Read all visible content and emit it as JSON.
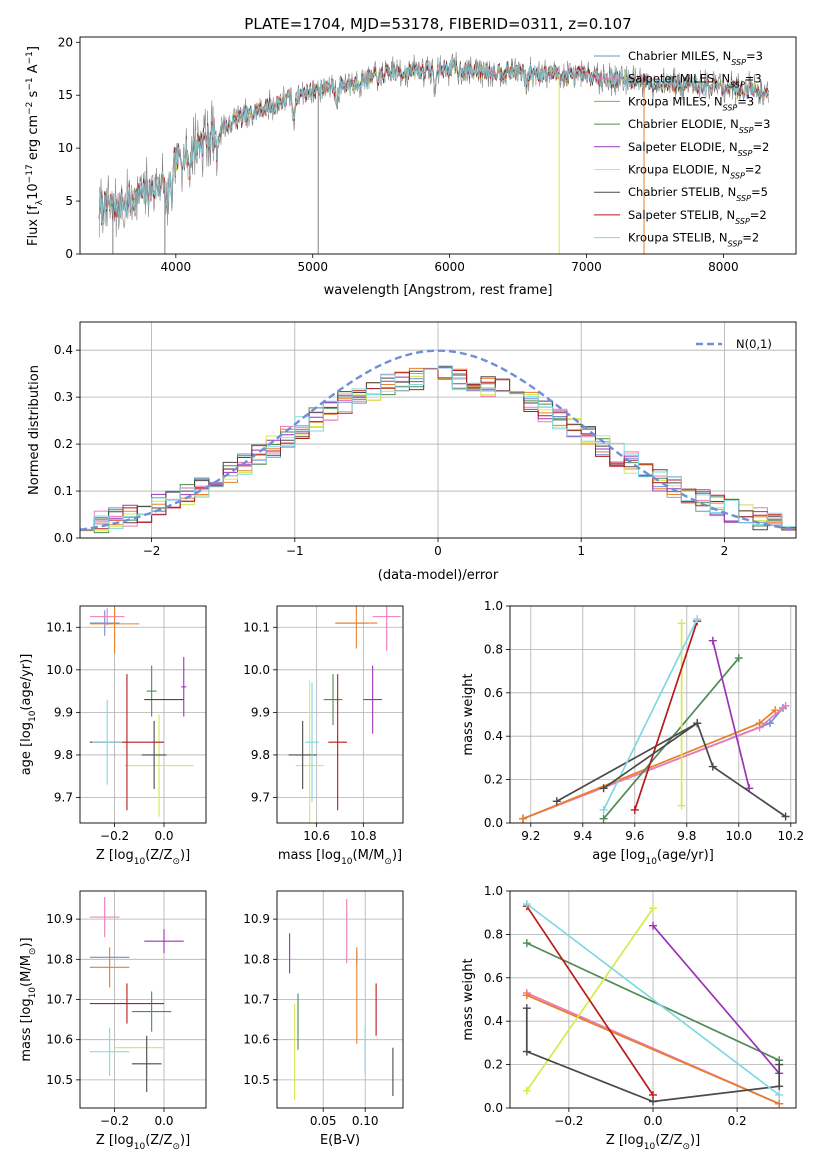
{
  "figure": {
    "title": "PLATE=1704, MJD=53178, FIBERID=0311, z=0.107"
  },
  "models": [
    {
      "name": "Chabrier MILES",
      "label": "Chabrier MILES, N",
      "nssp": "3",
      "color": "#6f8fd6"
    },
    {
      "name": "Salpeter MILES",
      "label": "Salpeter MILES, N",
      "nssp": "3",
      "color": "#f07ab6"
    },
    {
      "name": "Kroupa MILES",
      "label": "Kroupa MILES, N",
      "nssp": "3",
      "color": "#e8802a"
    },
    {
      "name": "Chabrier ELODIE",
      "label": "Chabrier ELODIE, N",
      "nssp": "3",
      "color": "#4f8a57"
    },
    {
      "name": "Salpeter ELODIE",
      "label": "Salpeter ELODIE, N",
      "nssp": "2",
      "color": "#9b33b8"
    },
    {
      "name": "Kroupa ELODIE",
      "label": "Kroupa ELODIE, N",
      "nssp": "2",
      "color": "#d6ea4b"
    },
    {
      "name": "Chabrier STELIB",
      "label": "Chabrier STELIB, N",
      "nssp": "5",
      "color": "#4a4a4a"
    },
    {
      "name": "Salpeter STELIB",
      "label": "Salpeter STELIB, N",
      "nssp": "2",
      "color": "#b81b1b"
    },
    {
      "name": "Kroupa STELIB",
      "label": "Kroupa STELIB, N",
      "nssp": "2",
      "color": "#7fd8e3"
    }
  ],
  "chart_data": [
    {
      "id": "spectrum",
      "type": "line",
      "title": "PLATE=1704, MJD=53178, FIBERID=0311, z=0.107",
      "xlabel": "wavelength [Angstrom, rest frame]",
      "ylabel": "Flux [f",
      "ylabel_sub": "λ",
      "ylabel_mid": "10",
      "ylabel_sup1": "−17",
      "ylabel_mid2": " erg cm",
      "ylabel_sup2": "−2",
      "ylabel_mid3": " s",
      "ylabel_sup3": "−1",
      "ylabel_mid4": " A",
      "ylabel_sup4": "−1",
      "ylabel_end": "]",
      "xlim": [
        3300,
        8530
      ],
      "ylim": [
        0,
        20.5
      ],
      "xticks": [
        4000,
        5000,
        6000,
        7000,
        8000
      ],
      "yticks": [
        0,
        5,
        10,
        15,
        20
      ],
      "data_range": [
        3440,
        8330
      ],
      "continuum": [
        [
          3440,
          4.2
        ],
        [
          3700,
          5.2
        ],
        [
          3900,
          6.5
        ],
        [
          4000,
          8.8
        ],
        [
          4200,
          10.8
        ],
        [
          4500,
          13.0
        ],
        [
          4800,
          14.6
        ],
        [
          5000,
          15.5
        ],
        [
          5300,
          16.2
        ],
        [
          5600,
          17.2
        ],
        [
          6000,
          17.5
        ],
        [
          6500,
          17.2
        ],
        [
          7000,
          16.8
        ],
        [
          7500,
          16.2
        ],
        [
          8000,
          15.8
        ],
        [
          8330,
          15.4
        ]
      ],
      "absorption": [
        [
          3934,
          3.5
        ],
        [
          3969,
          3.0
        ],
        [
          4102,
          1.5
        ],
        [
          4300,
          2.0
        ],
        [
          4861,
          2.0
        ],
        [
          5175,
          1.5
        ],
        [
          5893,
          2.0
        ],
        [
          6563,
          1.0
        ]
      ],
      "glitches": [
        [
          3540,
          0.0
        ],
        [
          3920,
          0.0
        ],
        [
          5040,
          0.0
        ],
        [
          6800,
          0.0
        ],
        [
          7420,
          0.0
        ]
      ],
      "legend": "upper right"
    },
    {
      "id": "residuals",
      "type": "histogram",
      "xlabel": "(data-model)/error",
      "ylabel": "Normed distribution",
      "xlim": [
        -2.5,
        2.5
      ],
      "ylim": [
        0,
        0.46
      ],
      "xticks": [
        -2,
        -1,
        0,
        1,
        2
      ],
      "yticks": [
        0.0,
        0.1,
        0.2,
        0.3,
        0.4
      ],
      "bin_width": 0.1,
      "gaussian_label": "N(0,1)",
      "gaussian_color": "#6f8fd6",
      "legend": "upper right"
    },
    {
      "id": "z_age",
      "type": "errorbar",
      "xlabel": "Z [log",
      "xlabel_sub": "10",
      "xlabel_end": "(Z/Z",
      "xlabel_sub2": "⊙",
      "xlabel_close": ")]",
      "ylabel": "age  [log",
      "ylabel_sub": "10",
      "ylabel_end": "(age/yr)]",
      "xlim": [
        -0.34,
        0.17
      ],
      "ylim": [
        9.64,
        10.15
      ],
      "xticks": [
        -0.2,
        0.0
      ],
      "xticklabels": [
        "−0.2",
        "0.0"
      ],
      "yticks": [
        9.7,
        9.8,
        9.9,
        10.0,
        10.1
      ],
      "points": [
        {
          "model": 0,
          "x": -0.24,
          "y": 10.11,
          "xerr": 0.06,
          "yerr": 0.03
        },
        {
          "model": 1,
          "x": -0.23,
          "y": 10.125,
          "xerr": 0.07,
          "yerr": 0.02
        },
        {
          "model": 2,
          "x": -0.2,
          "y": 10.108,
          "xerr": 0.1,
          "yerr": 0.07
        },
        {
          "model": 3,
          "x": -0.05,
          "y": 9.95,
          "xerr": 0.02,
          "yerr": 0.06
        },
        {
          "model": 4,
          "x": 0.08,
          "y": 9.96,
          "xerr": 0.01,
          "yerr": 0.07
        },
        {
          "model": 5,
          "x": -0.02,
          "y": 9.775,
          "xerr": 0.14,
          "yerr": 0.12
        },
        {
          "model": 6,
          "x": -0.04,
          "y": 9.8,
          "xerr": 0.05,
          "yerr": 0.08
        },
        {
          "model": 7,
          "x": -0.15,
          "y": 9.83,
          "xerr": 0.15,
          "yerr": 0.16
        },
        {
          "model": 8,
          "x": -0.23,
          "y": 9.83,
          "xerr": 0.06,
          "yerr": 0.1
        },
        {
          "model": 6,
          "x": 0.0,
          "y": 9.93,
          "xerr": 0.08,
          "yerr": 0.0
        }
      ]
    },
    {
      "id": "mass_age",
      "type": "errorbar",
      "xlabel": "mass [log",
      "xlabel_sub": "10",
      "xlabel_end": "(M/M",
      "xlabel_sub2": "⊙",
      "xlabel_close": ")]",
      "xlim": [
        10.43,
        10.97
      ],
      "ylim": [
        9.64,
        10.15
      ],
      "xticks": [
        10.6,
        10.8
      ],
      "xticklabels": [
        "10.6",
        "10.8"
      ],
      "yticks": [
        9.7,
        9.8,
        9.9,
        10.0,
        10.1
      ],
      "points": [
        {
          "model": 0,
          "x": 10.75,
          "y": 10.11,
          "xerr": 0.07,
          "yerr": 0.0
        },
        {
          "model": 1,
          "x": 10.9,
          "y": 10.125,
          "xerr": 0.06,
          "yerr": 0.08
        },
        {
          "model": 2,
          "x": 10.77,
          "y": 10.11,
          "xerr": 0.09,
          "yerr": 0.06
        },
        {
          "model": 3,
          "x": 10.67,
          "y": 9.93,
          "xerr": 0.04,
          "yerr": 0.06
        },
        {
          "model": 4,
          "x": 10.84,
          "y": 9.93,
          "xerr": 0.04,
          "yerr": 0.08
        },
        {
          "model": 5,
          "x": 10.57,
          "y": 9.775,
          "xerr": 0.06,
          "yerr": 0.2
        },
        {
          "model": 6,
          "x": 10.54,
          "y": 9.8,
          "xerr": 0.06,
          "yerr": 0.08
        },
        {
          "model": 7,
          "x": 10.69,
          "y": 9.83,
          "xerr": 0.04,
          "yerr": 0.16
        },
        {
          "model": 8,
          "x": 10.58,
          "y": 9.83,
          "xerr": 0.03,
          "yerr": 0.14
        }
      ]
    },
    {
      "id": "age_weight",
      "type": "line",
      "xlabel": "age  [log",
      "xlabel_sub": "10",
      "xlabel_end": "(age/yr)]",
      "ylabel": "mass weight",
      "xlim": [
        9.12,
        10.22
      ],
      "ylim": [
        0,
        1
      ],
      "xticks": [
        9.2,
        9.4,
        9.6,
        9.8,
        10.0,
        10.2
      ],
      "yticks": [
        0.0,
        0.2,
        0.4,
        0.6,
        0.8,
        1.0
      ],
      "series": [
        {
          "model": 0,
          "x": [
            9.17,
            10.12,
            10.17
          ],
          "y": [
            0.02,
            0.46,
            0.53
          ]
        },
        {
          "model": 1,
          "x": [
            9.17,
            10.08,
            10.18
          ],
          "y": [
            0.02,
            0.44,
            0.54
          ]
        },
        {
          "model": 2,
          "x": [
            9.17,
            10.08,
            10.14
          ],
          "y": [
            0.02,
            0.46,
            0.52
          ]
        },
        {
          "model": 3,
          "x": [
            9.48,
            10.0
          ],
          "y": [
            0.02,
            0.76
          ]
        },
        {
          "model": 4,
          "x": [
            9.9,
            10.04
          ],
          "y": [
            0.84,
            0.16
          ]
        },
        {
          "model": 5,
          "x": [
            9.78,
            9.78
          ],
          "y": [
            0.08,
            0.92
          ]
        },
        {
          "model": 6,
          "x": [
            9.3,
            9.84,
            9.9,
            10.18
          ],
          "y": [
            0.1,
            0.46,
            0.26,
            0.03
          ]
        },
        {
          "model": 7,
          "x": [
            9.6,
            9.84
          ],
          "y": [
            0.06,
            0.93
          ]
        },
        {
          "model": 8,
          "x": [
            9.48,
            9.84
          ],
          "y": [
            0.06,
            0.94
          ]
        },
        {
          "model": 6,
          "x": [
            9.48,
            9.84
          ],
          "y": [
            0.16,
            0.46
          ]
        }
      ]
    },
    {
      "id": "z_mass",
      "type": "errorbar",
      "xlabel": "Z [log",
      "xlabel_sub": "10",
      "xlabel_end": "(Z/Z",
      "xlabel_sub2": "⊙",
      "xlabel_close": ")]",
      "ylabel": "mass [log",
      "ylabel_sub": "10",
      "ylabel_end": "(M/M",
      "ylabel_sub2": "⊙",
      "ylabel_close": ")]",
      "xlim": [
        -0.34,
        0.17
      ],
      "ylim": [
        10.43,
        10.97
      ],
      "xticks": [
        -0.2,
        0.0
      ],
      "xticklabels": [
        "−0.2",
        "0.0"
      ],
      "yticks": [
        10.5,
        10.6,
        10.7,
        10.8,
        10.9
      ],
      "points": [
        {
          "model": 0,
          "x": -0.22,
          "y": 10.805,
          "xerr": 0.08,
          "yerr": 0.0
        },
        {
          "model": 1,
          "x": -0.24,
          "y": 10.905,
          "xerr": 0.06,
          "yerr": 0.05
        },
        {
          "model": 2,
          "x": -0.22,
          "y": 10.78,
          "xerr": 0.08,
          "yerr": 0.05
        },
        {
          "model": 3,
          "x": -0.05,
          "y": 10.67,
          "xerr": 0.08,
          "yerr": 0.05
        },
        {
          "model": 4,
          "x": 0.0,
          "y": 10.845,
          "xerr": 0.08,
          "yerr": 0.03
        },
        {
          "model": 5,
          "x": -0.1,
          "y": 10.58,
          "xerr": 0.1,
          "yerr": 0.0
        },
        {
          "model": 6,
          "x": -0.07,
          "y": 10.54,
          "xerr": 0.06,
          "yerr": 0.07
        },
        {
          "model": 7,
          "x": -0.15,
          "y": 10.69,
          "xerr": 0.15,
          "yerr": 0.05
        },
        {
          "model": 8,
          "x": -0.22,
          "y": 10.57,
          "xerr": 0.08,
          "yerr": 0.06
        }
      ]
    },
    {
      "id": "ebv_mass",
      "type": "errorbar",
      "xlabel": "E(B-V)",
      "xlim": [
        -0.005,
        0.145
      ],
      "ylim": [
        10.43,
        10.97
      ],
      "xticks": [
        0.05,
        0.1
      ],
      "xticklabels": [
        "0.05",
        "0.10"
      ],
      "yticks": [
        10.5,
        10.6,
        10.7,
        10.8,
        10.9
      ],
      "points": [
        {
          "model": 0,
          "x": 0.09,
          "y": 10.805,
          "xerr": 0.0,
          "yerr": 0.0
        },
        {
          "model": 1,
          "x": 0.078,
          "y": 10.87,
          "xerr": 0.0,
          "yerr": 0.08
        },
        {
          "model": 2,
          "x": 0.09,
          "y": 10.71,
          "xerr": 0.0,
          "yerr": 0.12
        },
        {
          "model": 3,
          "x": 0.02,
          "y": 10.645,
          "xerr": 0.0,
          "yerr": 0.07
        },
        {
          "model": 4,
          "x": 0.01,
          "y": 10.815,
          "xerr": 0.0,
          "yerr": 0.05
        },
        {
          "model": 5,
          "x": 0.016,
          "y": 10.57,
          "xerr": 0.0,
          "yerr": 0.12
        },
        {
          "model": 6,
          "x": 0.133,
          "y": 10.52,
          "xerr": 0.0,
          "yerr": 0.06
        },
        {
          "model": 7,
          "x": 0.113,
          "y": 10.675,
          "xerr": 0.0,
          "yerr": 0.065
        },
        {
          "model": 8,
          "x": 0.1,
          "y": 10.575,
          "xerr": 0.0,
          "yerr": 0.06
        }
      ]
    },
    {
      "id": "z_weight",
      "type": "line",
      "xlabel": "Z [log",
      "xlabel_sub": "10",
      "xlabel_end": "(Z/Z",
      "xlabel_sub2": "⊙",
      "xlabel_close": ")]",
      "ylabel": "mass weight",
      "xlim": [
        -0.34,
        0.34
      ],
      "ylim": [
        0,
        1
      ],
      "xticks": [
        -0.2,
        0.0,
        0.2
      ],
      "xticklabels": [
        "−0.2",
        "0.0",
        "0.2"
      ],
      "yticks": [
        0.0,
        0.2,
        0.4,
        0.6,
        0.8,
        1.0
      ],
      "series": [
        {
          "model": 0,
          "x": [
            -0.3,
            0.3
          ],
          "y": [
            0.52,
            0.02
          ]
        },
        {
          "model": 1,
          "x": [
            -0.3,
            0.3
          ],
          "y": [
            0.53,
            0.02
          ]
        },
        {
          "model": 2,
          "x": [
            -0.3,
            0.3
          ],
          "y": [
            0.52,
            0.02
          ]
        },
        {
          "model": 3,
          "x": [
            -0.3,
            0.3
          ],
          "y": [
            0.76,
            0.22
          ]
        },
        {
          "model": 4,
          "x": [
            0.0,
            0.3
          ],
          "y": [
            0.84,
            0.16
          ]
        },
        {
          "model": 5,
          "x": [
            -0.3,
            0.0
          ],
          "y": [
            0.08,
            0.92
          ]
        },
        {
          "model": 6,
          "x": [
            -0.3,
            -0.3,
            0.0,
            0.3,
            0.3
          ],
          "y": [
            0.46,
            0.26,
            0.03,
            0.1,
            0.2
          ]
        },
        {
          "model": 7,
          "x": [
            -0.3,
            0.0
          ],
          "y": [
            0.93,
            0.06
          ]
        },
        {
          "model": 8,
          "x": [
            -0.3,
            0.3
          ],
          "y": [
            0.94,
            0.06
          ]
        }
      ]
    }
  ]
}
